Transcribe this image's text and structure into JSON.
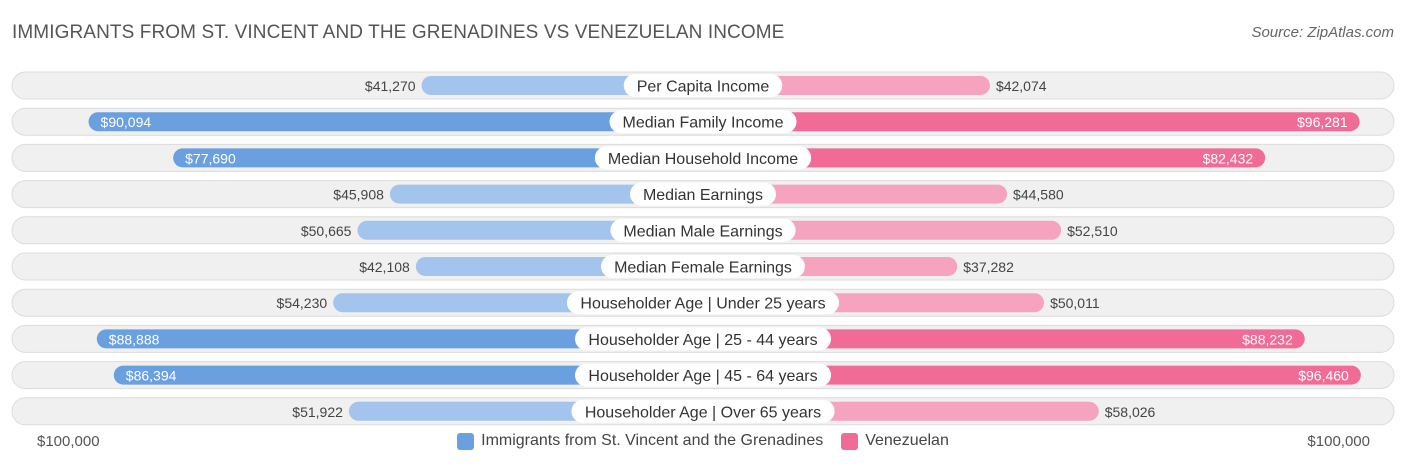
{
  "title": "IMMIGRANTS FROM ST. VINCENT AND THE GRENADINES VS VENEZUELAN INCOME",
  "source": "Source: ZipAtlas.com",
  "axis": {
    "left_label": "$100,000",
    "right_label": "$100,000"
  },
  "legend": [
    {
      "label": "Immigrants from St. Vincent and the Grenadines",
      "color": "#6a9fe0"
    },
    {
      "label": "Venezuelan",
      "color": "#f06b96"
    }
  ],
  "colors": {
    "left_light": "#a3c4ec",
    "left_dark": "#6a9fe0",
    "right_light": "#f5a3bf",
    "right_dark": "#f06b96",
    "row_bg": "#f0f0f0",
    "row_border": "#dcdcdc"
  },
  "chart_data": {
    "type": "bar",
    "orientation": "diverging-horizontal",
    "xlim": [
      0,
      100000
    ],
    "categories": [
      "Per Capita Income",
      "Median Family Income",
      "Median Household Income",
      "Median Earnings",
      "Median Male Earnings",
      "Median Female Earnings",
      "Householder Age | Under 25 years",
      "Householder Age | 25 - 44 years",
      "Householder Age | 45 - 64 years",
      "Householder Age | Over 65 years"
    ],
    "series": [
      {
        "name": "Immigrants from St. Vincent and the Grenadines",
        "values": [
          41270,
          90094,
          77690,
          45908,
          50665,
          42108,
          54230,
          88888,
          86394,
          51922
        ],
        "labels": [
          "$41,270",
          "$90,094",
          "$77,690",
          "$45,908",
          "$50,665",
          "$42,108",
          "$54,230",
          "$88,888",
          "$86,394",
          "$51,922"
        ]
      },
      {
        "name": "Venezuelan",
        "values": [
          42074,
          96281,
          82432,
          44580,
          52510,
          37282,
          50011,
          88232,
          96460,
          58026
        ],
        "labels": [
          "$42,074",
          "$96,281",
          "$82,432",
          "$44,580",
          "$52,510",
          "$37,282",
          "$50,011",
          "$88,232",
          "$96,460",
          "$58,026"
        ]
      }
    ]
  }
}
